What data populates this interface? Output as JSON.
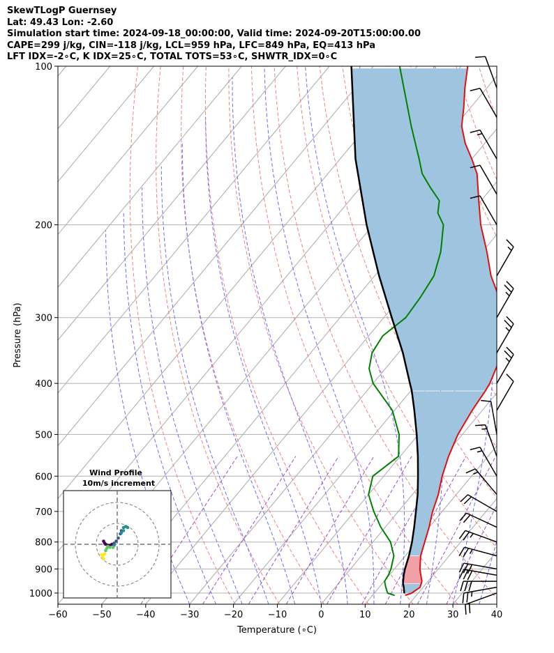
{
  "header": {
    "line1": "SkewTLogP Guernsey",
    "line2": "Lat: 49.43   Lon: -2.60",
    "line3": "Simulation start time: 2024-09-18_00:00:00, Valid time: 2024-09-20T15:00:00.00",
    "line4": "CAPE=299 j/kg, CIN=-118 j/kg, LCL=959 hPa, LFC=849 hPa, EQ=413 hPa",
    "line5": "LFT IDX=-2∘C, K IDX=25∘C, TOTAL TOTS=53∘C, SHWTR_IDX=0∘C"
  },
  "chart_data": [
    {
      "type": "line",
      "kind": "skew-T log-P sounding",
      "xlabel": "Temperature (∘C)",
      "ylabel": "Pressure (hPa)",
      "xlim": [
        -60,
        40
      ],
      "ylim": [
        1050,
        100
      ],
      "y_scale": "log",
      "x_ticks": [
        -60,
        -50,
        -40,
        -30,
        -20,
        -10,
        0,
        10,
        20,
        30,
        40
      ],
      "x_tick_labels": [
        "−60",
        "−50",
        "−40",
        "−30",
        "−20",
        "−10",
        "0",
        "10",
        "20",
        "30",
        "40"
      ],
      "y_ticks": [
        100,
        200,
        300,
        400,
        500,
        600,
        700,
        800,
        900,
        1000
      ],
      "y_tick_labels": [
        "100",
        "200",
        "300",
        "400",
        "500",
        "600",
        "700",
        "800",
        "900",
        "1000"
      ],
      "grid": true,
      "colors": {
        "temperature": "#e01010",
        "dewpoint": "#008000",
        "parcel": "#000000",
        "cape_fill": "#9ec4df",
        "cin_fill": "#f0a0a6",
        "dry_adiabat": "#f08080",
        "moist_adiabat": "#6a6aff",
        "mixing_ratio": "#9b4fc4",
        "isotherm": "#aaaaaa"
      },
      "series": [
        {
          "name": "temperature",
          "pressure": [
            1010,
            1000,
            975,
            950,
            925,
            900,
            850,
            800,
            750,
            700,
            650,
            600,
            550,
            500,
            450,
            413,
            400,
            350,
            300,
            275,
            250,
            225,
            200,
            180,
            160,
            150,
            140,
            130,
            120,
            110,
            100
          ],
          "values": [
            17.5,
            18.5,
            19.3,
            18.6,
            17.2,
            15.8,
            13.5,
            11.8,
            10.0,
            7.8,
            5.9,
            3.3,
            1.0,
            -1.0,
            -2.3,
            -3.0,
            -3.4,
            -6.3,
            -12.0,
            -17.5,
            -23.5,
            -29.0,
            -35.5,
            -40.5,
            -46.0,
            -50.0,
            -54.5,
            -58.5,
            -61.5,
            -65.0,
            -68.5
          ]
        },
        {
          "name": "dewpoint",
          "pressure": [
            1010,
            1000,
            975,
            950,
            925,
            900,
            850,
            800,
            750,
            700,
            650,
            600,
            550,
            500,
            450,
            400,
            375,
            350,
            325,
            300,
            275,
            250,
            225,
            200,
            190,
            180,
            170,
            160,
            150,
            130,
            100
          ],
          "values": [
            15.0,
            13.0,
            11.5,
            10.1,
            9.8,
            9.2,
            7.4,
            4.0,
            -1.0,
            -5.6,
            -10.0,
            -12.5,
            -10.4,
            -14.4,
            -20.5,
            -30.0,
            -33.7,
            -36.0,
            -36.8,
            -35.0,
            -35.5,
            -36.5,
            -39.5,
            -44.0,
            -47.5,
            -49.5,
            -54.0,
            -58.5,
            -62.0,
            -70.0,
            -84.0
          ]
        },
        {
          "name": "parcel",
          "pressure": [
            1000,
            975,
            959,
            925,
            900,
            849,
            800,
            750,
            700,
            650,
            600,
            550,
            500,
            450,
            413,
            400,
            350,
            300,
            250,
            200,
            150,
            100
          ],
          "values": [
            16.8,
            15.6,
            14.7,
            13.3,
            12.4,
            10.8,
            8.9,
            6.6,
            4.0,
            1.2,
            -2.2,
            -6.0,
            -10.4,
            -15.5,
            -19.8,
            -21.6,
            -29.0,
            -38.2,
            -49.0,
            -61.5,
            -76.5,
            -95.0
          ]
        }
      ],
      "annotations": {
        "lcl_hpa": 959,
        "lfc_hpa": 849,
        "eq_hpa": 413,
        "cape_region": "413-849 hPa",
        "cin_region": "849-959 hPa"
      },
      "wind_barbs": {
        "pressure": [
          1000,
          975,
          950,
          925,
          900,
          850,
          800,
          750,
          700,
          650,
          600,
          550,
          500,
          450,
          400,
          350,
          300,
          250,
          200,
          175,
          150,
          125,
          110
        ],
        "speed_kt": [
          20,
          25,
          30,
          30,
          30,
          25,
          25,
          20,
          20,
          15,
          15,
          15,
          10,
          10,
          25,
          25,
          25,
          15,
          10,
          10,
          15,
          10,
          10
        ],
        "direction_deg": [
          250,
          260,
          270,
          280,
          280,
          285,
          290,
          295,
          300,
          320,
          330,
          340,
          350,
          30,
          30,
          30,
          30,
          30,
          330,
          330,
          330,
          330,
          340
        ]
      }
    },
    {
      "type": "scatter",
      "kind": "hodograph",
      "title_line1": "Wind Profile",
      "title_line2": "10m/s increment",
      "ring_increment_ms": 10,
      "xlim": [
        -25,
        25
      ],
      "ylim": [
        -25,
        25
      ],
      "u": [
        -6.5,
        -6.0,
        -5.5,
        -4.5,
        -3.5,
        -2.5,
        -1.5,
        -0.5,
        0.5,
        1.5,
        2.0,
        3.0,
        4.0,
        5.0,
        3.0,
        2.0,
        -1.5,
        -2.0,
        -3.5,
        -4.5,
        -5.0,
        -5.5,
        -6.0,
        -6.5,
        -7.0,
        -7.0,
        -6.5,
        -7.5
      ],
      "v": [
        1.5,
        0.5,
        0.0,
        -0.5,
        -0.5,
        0.0,
        0.5,
        1.5,
        3.0,
        5.0,
        6.5,
        8.0,
        8.5,
        8.0,
        6.5,
        5.5,
        -0.5,
        -1.5,
        -1.5,
        -1.0,
        -2.0,
        -3.0,
        -4.5,
        -5.0,
        -5.5,
        -6.0,
        -7.0,
        -5.0
      ]
    }
  ]
}
